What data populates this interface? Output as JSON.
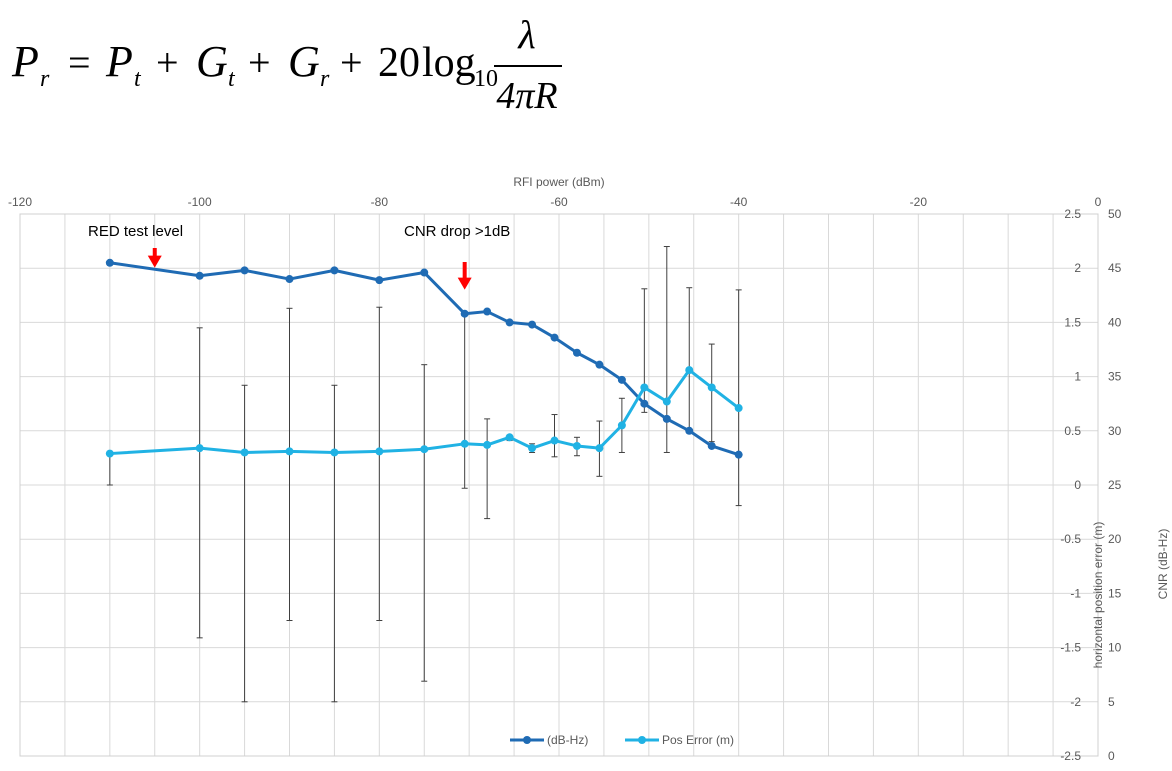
{
  "formula": {
    "lhs": "P",
    "lhs_sub": "r",
    "t1": "P",
    "t1_sub": "t",
    "t2": "G",
    "t2_sub": "t",
    "t3": "G",
    "t3_sub": "r",
    "coef": "20",
    "log": "log",
    "log_sub": "10",
    "numerator": "λ",
    "denominator": "4πR"
  },
  "chart_data": {
    "type": "line",
    "xlabel": "RFI power (dBm)",
    "x_ticks": [
      -120,
      -100,
      -80,
      -60,
      -40,
      -20,
      0
    ],
    "xlim": [
      -120,
      0
    ],
    "y1label": "horizontal position error (m)",
    "y1_ticks": [
      "2.5",
      "2",
      "1.5",
      "1",
      "0.5",
      "0",
      "-0.5",
      "-1",
      "-1.5",
      "-2",
      "-2.5"
    ],
    "y1lim": [
      -2.5,
      2.5
    ],
    "y2label": "CNR (dB-Hz)",
    "y2_ticks": [
      "50",
      "45",
      "40",
      "35",
      "30",
      "25",
      "20",
      "15",
      "10",
      "5",
      "0"
    ],
    "y2lim": [
      0,
      50
    ],
    "grid": true,
    "legend_position": "bottom",
    "series": [
      {
        "name": "(dB-Hz)",
        "axis": "right",
        "color": "#1f6bb4",
        "x": [
          -110,
          -100,
          -95,
          -90,
          -85,
          -80,
          -75,
          -70.5,
          -68,
          -65.5,
          -63,
          -60.5,
          -58,
          -55.5,
          -53,
          -50.5,
          -48,
          -45.5,
          -43,
          -40
        ],
        "y": [
          45.5,
          44.3,
          44.8,
          44.0,
          44.8,
          43.9,
          44.6,
          40.8,
          41.0,
          40.0,
          39.8,
          38.6,
          37.2,
          36.1,
          34.7,
          32.5,
          31.1,
          30.0,
          28.6,
          27.8
        ]
      },
      {
        "name": "Pos Error (m)",
        "axis": "left",
        "color": "#20b2e4",
        "x": [
          -110,
          -100,
          -95,
          -90,
          -85,
          -80,
          -75,
          -70.5,
          -68,
          -65.5,
          -63,
          -60.5,
          -58,
          -55.5,
          -53,
          -50.5,
          -48,
          -45.5,
          -43,
          -40
        ],
        "y": [
          0.29,
          0.34,
          0.3,
          0.31,
          0.3,
          0.31,
          0.33,
          0.38,
          0.37,
          0.44,
          0.34,
          0.41,
          0.36,
          0.34,
          0.55,
          0.9,
          0.77,
          1.06,
          0.9,
          0.71
        ],
        "error_low": [
          0.29,
          1.75,
          2.3,
          1.56,
          2.3,
          1.56,
          2.14,
          0.41,
          0.68,
          0.03,
          0.04,
          0.15,
          0.09,
          0.26,
          0.25,
          0.23,
          0.47,
          0.58,
          0.5,
          0.9
        ],
        "error_high": [
          0.0,
          1.11,
          0.62,
          1.32,
          0.62,
          1.33,
          0.78,
          1.2,
          0.24,
          0.02,
          0.04,
          0.24,
          0.08,
          0.25,
          0.25,
          0.91,
          1.43,
          0.76,
          0.4,
          1.09
        ]
      }
    ],
    "annotations": [
      {
        "text": "RED test level",
        "arrow_x": -105,
        "arrow_y1": 1.95
      },
      {
        "text": "CNR drop >1dB",
        "arrow_x": -70.5,
        "arrow_y1": 1.95
      }
    ]
  }
}
